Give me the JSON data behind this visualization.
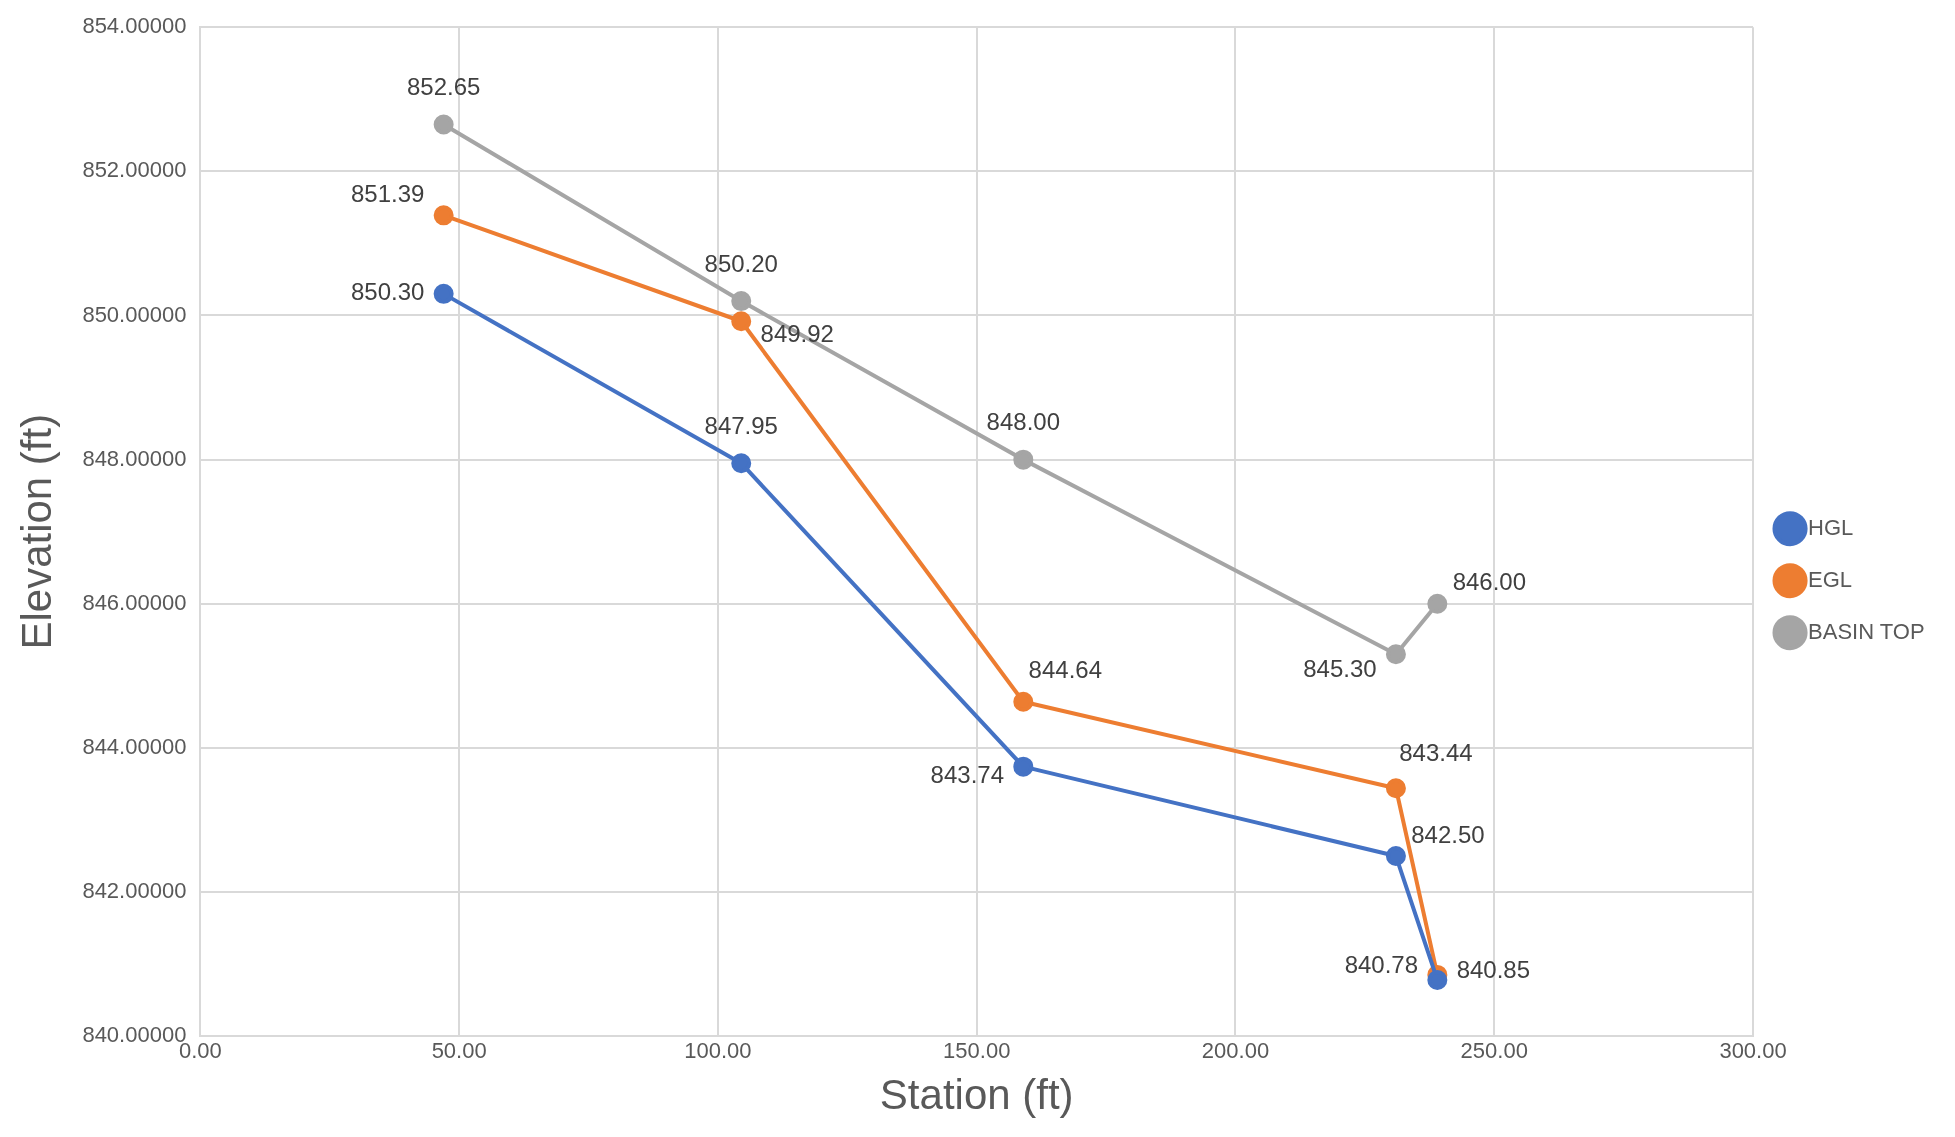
{
  "chart_data": {
    "type": "line",
    "xlabel": "Station (ft)",
    "ylabel": "Elevation (ft)",
    "x": [
      47,
      104.5,
      159,
      231,
      239
    ],
    "series": [
      {
        "name": "HGL",
        "color": "#4472c4",
        "values": [
          850.3,
          847.95,
          843.74,
          842.5,
          840.78
        ],
        "value_labels": [
          "850.30",
          "847.95",
          "843.74",
          "842.50",
          "840.78"
        ]
      },
      {
        "name": "EGL",
        "color": "#ed7d31",
        "values": [
          851.39,
          849.92,
          844.64,
          843.44,
          840.85
        ],
        "value_labels": [
          "851.39",
          "849.92",
          "844.64",
          "843.44",
          "840.85"
        ]
      },
      {
        "name": "BASIN TOP",
        "color": "#a5a5a5",
        "values": [
          852.65,
          850.2,
          848.0,
          845.3,
          846.0
        ],
        "value_labels": [
          "852.65",
          "850.20",
          "848.00",
          "845.30",
          "846.00"
        ]
      }
    ],
    "xlim": [
      0,
      300
    ],
    "xticks": [
      {
        "value": 0,
        "label": "0.00"
      },
      {
        "value": 50,
        "label": "50.00"
      },
      {
        "value": 100,
        "label": "100.00"
      },
      {
        "value": 150,
        "label": "150.00"
      },
      {
        "value": 200,
        "label": "200.00"
      },
      {
        "value": 250,
        "label": "250.00"
      },
      {
        "value": 300,
        "label": "300.00"
      }
    ],
    "ylim": [
      840,
      854
    ],
    "yticks": [
      {
        "value": 840,
        "label": "840.00000"
      },
      {
        "value": 842,
        "label": "842.00000"
      },
      {
        "value": 844,
        "label": "844.00000"
      },
      {
        "value": 846,
        "label": "846.00000"
      },
      {
        "value": 848,
        "label": "848.00000"
      },
      {
        "value": 850,
        "label": "850.00000"
      },
      {
        "value": 852,
        "label": "852.00000"
      },
      {
        "value": 854,
        "label": "854.00000"
      }
    ],
    "grid": true,
    "legend": "right",
    "marker": "circle",
    "line_style": "solid"
  }
}
